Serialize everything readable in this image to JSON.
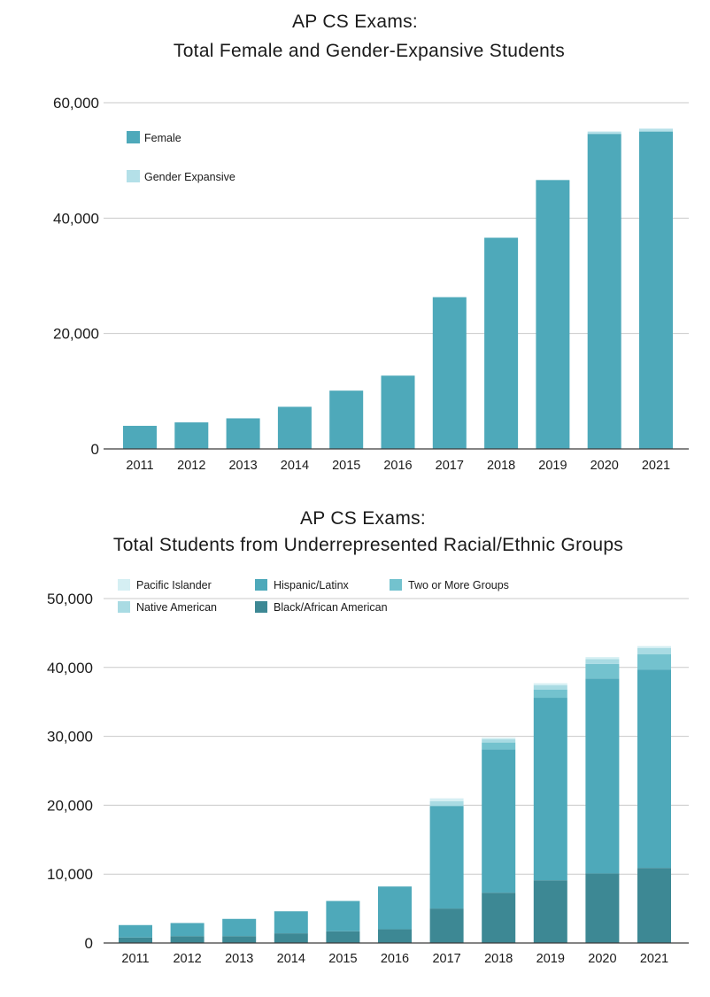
{
  "chart_data": [
    {
      "type": "bar",
      "stacked": true,
      "title": [
        "AP CS Exams:",
        "Total Female and Gender-Expansive Students"
      ],
      "xlabel": "",
      "ylabel": "",
      "categories": [
        "2011",
        "2012",
        "2013",
        "2014",
        "2015",
        "2016",
        "2017",
        "2018",
        "2019",
        "2020",
        "2021"
      ],
      "ylim": [
        0,
        60000
      ],
      "yticks": [
        0,
        20000,
        40000,
        60000
      ],
      "ytick_labels": [
        "0",
        "20,000",
        "40,000",
        "60,000"
      ],
      "grid": true,
      "legend_position": "top-left",
      "series": [
        {
          "name": "Female",
          "color": "#4ea9ba",
          "values": [
            4000,
            4600,
            5300,
            7300,
            10100,
            12700,
            26300,
            36600,
            46600,
            54600,
            55000
          ]
        },
        {
          "name": "Gender Expansive",
          "color": "#b4e0e8",
          "values": [
            0,
            0,
            0,
            0,
            0,
            0,
            0,
            0,
            0,
            400,
            500
          ]
        }
      ]
    },
    {
      "type": "bar",
      "stacked": true,
      "title": [
        "AP CS Exams:",
        "Total Students from Underrepresented Racial/Ethnic Groups"
      ],
      "xlabel": "",
      "ylabel": "",
      "categories": [
        "2011",
        "2012",
        "2013",
        "2014",
        "2015",
        "2016",
        "2017",
        "2018",
        "2019",
        "2020",
        "2021"
      ],
      "ylim": [
        0,
        50000
      ],
      "yticks": [
        0,
        10000,
        20000,
        30000,
        40000,
        50000
      ],
      "ytick_labels": [
        "0",
        "10,000",
        "20,000",
        "30,000",
        "40,000",
        "50,000"
      ],
      "grid": true,
      "legend_position": "top-left",
      "legend_layout": [
        [
          "Pacific Islander",
          "Hispanic/Latinx",
          "Two or More Groups"
        ],
        [
          "Native American",
          "Black/African American"
        ]
      ],
      "series": [
        {
          "name": "Black/African American",
          "color": "#3d8894",
          "values": [
            800,
            1000,
            1000,
            1400,
            1700,
            2000,
            5000,
            7300,
            9100,
            10100,
            10900
          ]
        },
        {
          "name": "Hispanic/Latinx",
          "color": "#4ea9ba",
          "values": [
            1800,
            1900,
            2500,
            3200,
            4400,
            6200,
            14900,
            20800,
            26500,
            28300,
            28800
          ]
        },
        {
          "name": "Two or More Groups",
          "color": "#73c2ce",
          "values": [
            0,
            0,
            0,
            0,
            0,
            0,
            0,
            1000,
            1200,
            2100,
            2200
          ]
        },
        {
          "name": "Native American",
          "color": "#a9dbe3",
          "values": [
            0,
            0,
            0,
            0,
            0,
            0,
            700,
            500,
            600,
            700,
            900
          ]
        },
        {
          "name": "Pacific Islander",
          "color": "#d5eff3",
          "values": [
            0,
            0,
            0,
            0,
            0,
            0,
            400,
            200,
            300,
            300,
            300
          ]
        }
      ]
    }
  ]
}
